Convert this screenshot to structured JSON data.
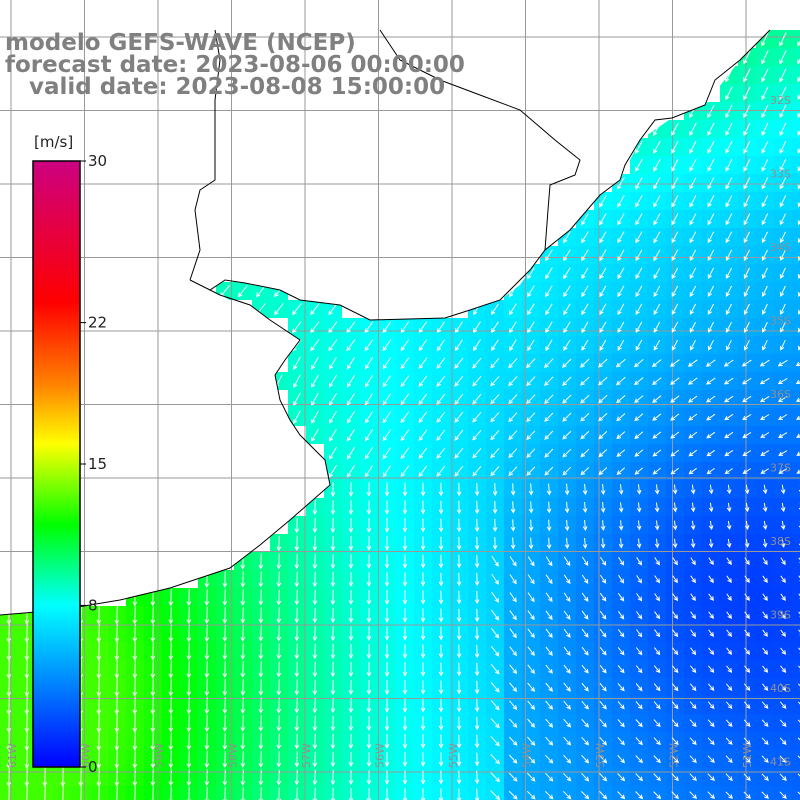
{
  "title": {
    "line1": "modelo GEFS-WAVE (NCEP)",
    "line2": "forecast date: 2023-08-06 00:00:00",
    "line3": "   valid date: 2023-08-08 15:00:00"
  },
  "colorbar": {
    "unit": "[m/s]",
    "ticks": [
      {
        "value": 30,
        "label": "30"
      },
      {
        "value": 22,
        "label": "22"
      },
      {
        "value": 15,
        "label": "15"
      },
      {
        "value": 8,
        "label": "8"
      },
      {
        "value": 0,
        "label": "0"
      }
    ],
    "min": 0,
    "max": 30,
    "color_stops": [
      {
        "value": 0,
        "color": "#0000ff"
      },
      {
        "value": 4,
        "color": "#0080ff"
      },
      {
        "value": 8,
        "color": "#00ffff"
      },
      {
        "value": 12,
        "color": "#00ff00"
      },
      {
        "value": 16,
        "color": "#ffff00"
      },
      {
        "value": 19,
        "color": "#ff8000"
      },
      {
        "value": 23,
        "color": "#ff0000"
      },
      {
        "value": 30,
        "color": "#cc0080"
      }
    ]
  },
  "lat_labels": [
    "32S",
    "33S",
    "34S",
    "35S",
    "36S",
    "37S",
    "38S",
    "39S",
    "40S",
    "41S"
  ],
  "lon_labels": [
    "61W",
    "60W",
    "59W",
    "58W",
    "57W",
    "56W",
    "55W",
    "54W",
    "53W",
    "52W",
    "51W"
  ],
  "colors": {
    "land": "#ffffff",
    "coast": "#000000",
    "grid": "#999999",
    "arrow": "#ffffff"
  }
}
